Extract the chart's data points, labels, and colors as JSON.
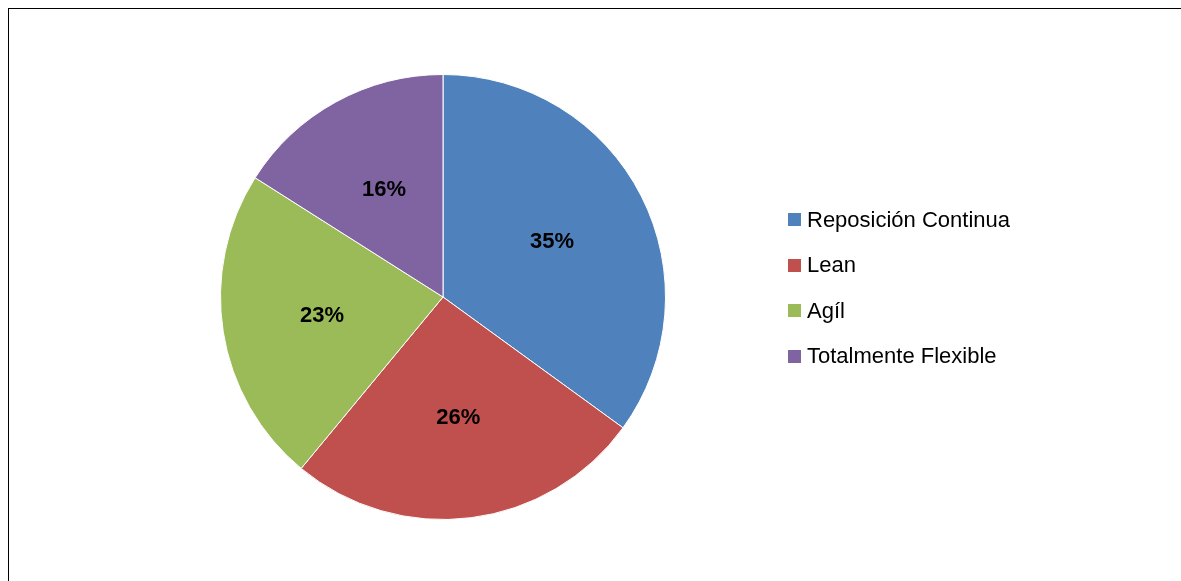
{
  "chart_data": {
    "type": "pie",
    "categories": [
      "Reposición Continua",
      "Lean",
      "Agíl",
      "Totalmente Flexible"
    ],
    "values": [
      35,
      26,
      23,
      16
    ],
    "colors": [
      "#4f81bd",
      "#c0504d",
      "#9bbb59",
      "#8064a2"
    ],
    "value_labels": [
      "35%",
      "26%",
      "23%",
      "16%"
    ],
    "legend": "right"
  }
}
